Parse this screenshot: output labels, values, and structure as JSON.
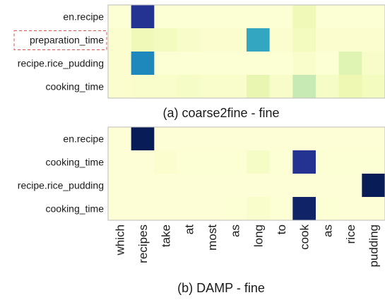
{
  "colors": {
    "scale": [
      "#ffffd9",
      "#edf8b1",
      "#c7e9b4",
      "#7fcdbb",
      "#41b6c4",
      "#1d91c0",
      "#225ea8",
      "#253494",
      "#081d58"
    ],
    "highlight_border": "#d9534f",
    "plot_border": "#bbbbbb"
  },
  "chart_data": [
    {
      "type": "heatmap",
      "caption": "(a) coarse2fine - fine",
      "rows": [
        "en.recipe",
        "preparation_time",
        "recipe.rice_pudding",
        "cooking_time"
      ],
      "highlighted_row": "preparation_time",
      "columns": [
        "which",
        "recipes",
        "take",
        "at",
        "most",
        "as",
        "long",
        "to",
        "cook",
        "as",
        "rice",
        "pudding"
      ],
      "values": [
        [
          0.02,
          0.88,
          0.02,
          0.02,
          0.02,
          0.02,
          0.02,
          0.02,
          0.1,
          0.02,
          0.02,
          0.02
        ],
        [
          0.03,
          0.1,
          0.08,
          0.05,
          0.03,
          0.03,
          0.55,
          0.03,
          0.08,
          0.03,
          0.03,
          0.03
        ],
        [
          0.03,
          0.65,
          0.02,
          0.02,
          0.02,
          0.02,
          0.02,
          0.02,
          0.04,
          0.02,
          0.17,
          0.05
        ],
        [
          0.03,
          0.04,
          0.04,
          0.06,
          0.04,
          0.04,
          0.14,
          0.05,
          0.25,
          0.06,
          0.12,
          0.08
        ]
      ]
    },
    {
      "type": "heatmap",
      "caption": "(b) DAMP - fine",
      "rows": [
        "en.recipe",
        "cooking_time",
        "recipe.rice_pudding",
        "cooking_time"
      ],
      "columns": [
        "which",
        "recipes",
        "take",
        "at",
        "most",
        "as",
        "long",
        "to",
        "cook",
        "as",
        "rice",
        "pudding"
      ],
      "values": [
        [
          0.01,
          1.0,
          0.01,
          0.01,
          0.01,
          0.01,
          0.01,
          0.01,
          0.01,
          0.01,
          0.01,
          0.01
        ],
        [
          0.01,
          0.01,
          0.03,
          0.02,
          0.02,
          0.02,
          0.06,
          0.02,
          0.88,
          0.02,
          0.02,
          0.02
        ],
        [
          0.01,
          0.01,
          0.01,
          0.01,
          0.01,
          0.01,
          0.01,
          0.01,
          0.01,
          0.01,
          0.01,
          1.0
        ],
        [
          0.01,
          0.01,
          0.01,
          0.01,
          0.01,
          0.02,
          0.04,
          0.02,
          0.97,
          0.02,
          0.01,
          0.01
        ]
      ]
    }
  ]
}
